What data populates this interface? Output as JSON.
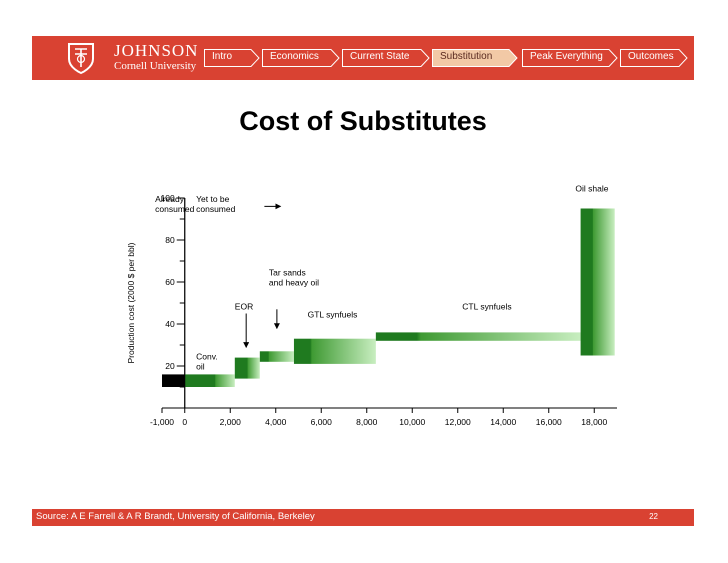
{
  "header": {
    "logo_name": "JOHNSON",
    "logo_sub": "Cornell University",
    "nav": [
      "Intro",
      "Economics",
      "Current State",
      "Substitution",
      "Peak Everything",
      "Outcomes"
    ],
    "active_nav": "Substitution"
  },
  "title": "Cost of Substitutes",
  "footer": {
    "source": "Source: A E Farrell & A R Brandt, University of California, Berkeley",
    "page": "22"
  },
  "colors": {
    "brand_red": "#d94232",
    "green_dark": "#1f7a1f",
    "green_light": "#c8eec0"
  },
  "chart_data": {
    "type": "bar",
    "xlabel": "",
    "ylabel": "Production cost (2000 $ per bbl)",
    "xlim": [
      -1000,
      19000
    ],
    "ylim": [
      0,
      100
    ],
    "xticks": [
      "-1,000",
      "0",
      "2,000",
      "4,000",
      "6,000",
      "8,000",
      "10,000",
      "12,000",
      "14,000",
      "16,000",
      "18,000"
    ],
    "xtick_values": [
      -1000,
      0,
      2000,
      4000,
      6000,
      8000,
      10000,
      12000,
      14000,
      16000,
      18000
    ],
    "yticks": [
      "20",
      "40",
      "60",
      "80",
      "100"
    ],
    "ytick_values": [
      20,
      40,
      60,
      80,
      100
    ],
    "consumed_divider_x": 0,
    "annotations": [
      {
        "text": "Already\nconsumed",
        "x": -1300,
        "y": 98
      },
      {
        "text": "Yet to be\nconsumed",
        "x": 500,
        "y": 98
      },
      {
        "text": "Conv.\noil",
        "x": 500,
        "y": 23
      },
      {
        "text": "EOR",
        "x": 2200,
        "y": 47
      },
      {
        "text": "Tar sands\nand heavy oil",
        "x": 3700,
        "y": 63
      },
      {
        "text": "GTL synfuels",
        "x": 5400,
        "y": 43
      },
      {
        "text": "CTL synfuels",
        "x": 12200,
        "y": 47
      },
      {
        "text": "Oil shale",
        "x": 17900,
        "y": 103
      }
    ],
    "segments": [
      {
        "name": "Already consumed",
        "x0": -1000,
        "x1": 0,
        "y0": 10,
        "y1": 16,
        "dark_ratio": 1.0,
        "black": true
      },
      {
        "name": "Conv. oil",
        "x0": 0,
        "x1": 2200,
        "y0": 10,
        "y1": 16,
        "dark_ratio": 0.6
      },
      {
        "name": "EOR",
        "x0": 2200,
        "x1": 3300,
        "y0": 14,
        "y1": 24,
        "dark_ratio": 0.5
      },
      {
        "name": "Tar sands and heavy oil",
        "x0": 3300,
        "x1": 4800,
        "y0": 22,
        "y1": 27,
        "dark_ratio": 0.25
      },
      {
        "name": "GTL synfuels",
        "x0": 4800,
        "x1": 8400,
        "y0": 21,
        "y1": 33,
        "dark_ratio": 0.2
      },
      {
        "name": "CTL synfuels",
        "x0": 8400,
        "x1": 17400,
        "y0": 32,
        "y1": 36,
        "dark_ratio": 0.2
      },
      {
        "name": "Oil shale",
        "x0": 17400,
        "x1": 18900,
        "y0": 25,
        "y1": 95,
        "dark_ratio": 0.35
      }
    ],
    "arrows": [
      {
        "for": "Yet to be consumed",
        "direction": "right"
      },
      {
        "for": "EOR",
        "direction": "down"
      },
      {
        "for": "Tar sands and heavy oil",
        "direction": "down"
      }
    ]
  }
}
